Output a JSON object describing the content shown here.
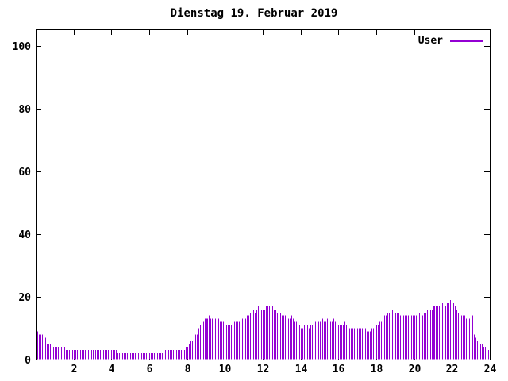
{
  "title": "Dienstag 19. Februar 2019",
  "legend": {
    "label": "User",
    "color": "#9400d3"
  },
  "colors": {
    "background": "#ffffff",
    "frame": "#000000",
    "text": "#000000",
    "bars": "#9400d3"
  },
  "chart_data": {
    "type": "bar",
    "title": "Dienstag 19. Februar 2019",
    "series_name": "User",
    "xlabel": "",
    "ylabel": "",
    "xlim": [
      0,
      24
    ],
    "ylim": [
      0,
      105
    ],
    "xticks": [
      2,
      4,
      6,
      8,
      10,
      12,
      14,
      16,
      18,
      20,
      22,
      24
    ],
    "yticks": [
      0,
      20,
      40,
      60,
      80,
      100
    ],
    "grid": false,
    "legend_position": "top-right",
    "bar_color": "#9400d3",
    "interval_minutes": 5,
    "values": [
      9,
      8,
      8,
      8,
      7,
      7,
      5,
      5,
      5,
      5,
      4,
      4,
      4,
      4,
      4,
      4,
      4,
      4,
      3,
      3,
      3,
      3,
      3,
      3,
      3,
      3,
      3,
      3,
      3,
      3,
      3,
      3,
      3,
      3,
      3,
      3,
      3,
      3,
      3,
      3,
      3,
      3,
      3,
      3,
      3,
      3,
      3,
      3,
      3,
      3,
      3,
      2,
      2,
      2,
      2,
      2,
      2,
      2,
      2,
      2,
      2,
      2,
      2,
      2,
      2,
      2,
      2,
      2,
      2,
      2,
      2,
      2,
      2,
      2,
      2,
      2,
      2,
      2,
      2,
      2,
      3,
      3,
      3,
      3,
      3,
      3,
      3,
      3,
      3,
      3,
      3,
      3,
      3,
      3,
      4,
      4,
      5,
      6,
      6,
      7,
      8,
      8,
      10,
      11,
      12,
      12,
      13,
      13,
      13,
      14,
      13,
      13,
      14,
      13,
      13,
      13,
      12,
      12,
      12,
      12,
      11,
      11,
      11,
      11,
      11,
      12,
      12,
      12,
      12,
      13,
      13,
      13,
      13,
      14,
      14,
      15,
      15,
      16,
      15,
      16,
      17,
      16,
      16,
      16,
      16,
      17,
      17,
      17,
      16,
      17,
      16,
      16,
      15,
      15,
      15,
      14,
      14,
      14,
      13,
      13,
      13,
      14,
      13,
      12,
      12,
      11,
      11,
      10,
      10,
      11,
      10,
      11,
      10,
      11,
      11,
      12,
      12,
      11,
      12,
      12,
      12,
      13,
      12,
      12,
      13,
      12,
      12,
      12,
      13,
      12,
      12,
      11,
      11,
      11,
      11,
      12,
      11,
      11,
      10,
      10,
      10,
      10,
      10,
      10,
      10,
      10,
      10,
      10,
      10,
      9,
      9,
      9,
      10,
      10,
      10,
      11,
      11,
      12,
      12,
      13,
      14,
      14,
      15,
      15,
      16,
      16,
      15,
      15,
      15,
      15,
      14,
      14,
      14,
      14,
      14,
      14,
      14,
      14,
      14,
      14,
      14,
      14,
      15,
      16,
      14,
      15,
      15,
      16,
      16,
      16,
      16,
      17,
      17,
      17,
      17,
      17,
      17,
      18,
      17,
      17,
      18,
      18,
      19,
      18,
      18,
      17,
      16,
      15,
      15,
      14,
      14,
      14,
      13,
      14,
      13,
      14,
      14,
      8,
      7,
      6,
      6,
      5,
      5,
      4,
      4,
      3,
      3,
      2
    ]
  }
}
